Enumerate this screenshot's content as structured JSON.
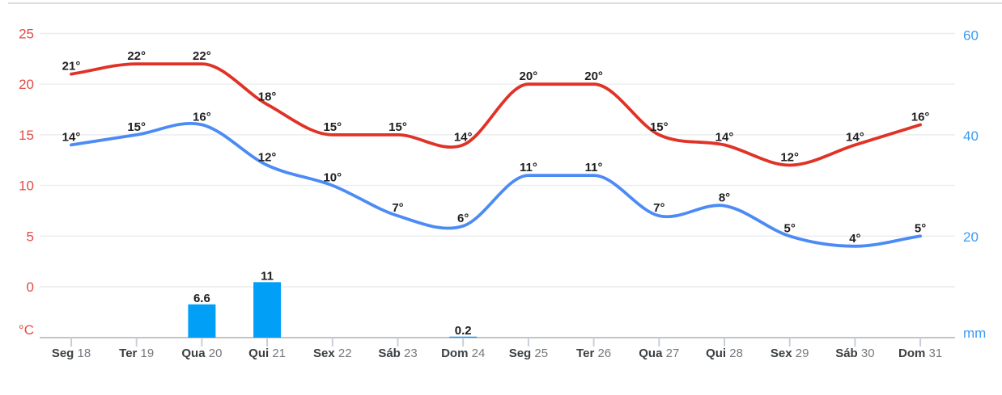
{
  "chart_data": {
    "type": "line+bar",
    "title": "",
    "categories": [
      {
        "day": "Seg",
        "date": "18"
      },
      {
        "day": "Ter",
        "date": "19"
      },
      {
        "day": "Qua",
        "date": "20"
      },
      {
        "day": "Qui",
        "date": "21"
      },
      {
        "day": "Sex",
        "date": "22"
      },
      {
        "day": "Sáb",
        "date": "23"
      },
      {
        "day": "Dom",
        "date": "24"
      },
      {
        "day": "Seg",
        "date": "25"
      },
      {
        "day": "Ter",
        "date": "26"
      },
      {
        "day": "Qua",
        "date": "27"
      },
      {
        "day": "Qui",
        "date": "28"
      },
      {
        "day": "Sex",
        "date": "29"
      },
      {
        "day": "Sáb",
        "date": "30"
      },
      {
        "day": "Dom",
        "date": "31"
      }
    ],
    "series": [
      {
        "name": "max-temperature",
        "type": "line",
        "color": "#e03226",
        "values": [
          21,
          22,
          22,
          18,
          15,
          15,
          14,
          20,
          20,
          15,
          14,
          12,
          14,
          16
        ],
        "labels": [
          "21°",
          "22°",
          "22°",
          "18°",
          "15°",
          "15°",
          "14°",
          "20°",
          "20°",
          "15°",
          "14°",
          "12°",
          "14°",
          "16°"
        ]
      },
      {
        "name": "min-temperature",
        "type": "line",
        "color": "#4c8bf5",
        "values": [
          14,
          15,
          16,
          12,
          10,
          7,
          6,
          11,
          11,
          7,
          8,
          5,
          4,
          5
        ],
        "labels": [
          "14°",
          "15°",
          "16°",
          "12°",
          "10°",
          "7°",
          "6°",
          "11°",
          "11°",
          "7°",
          "8°",
          "5°",
          "4°",
          "5°"
        ]
      },
      {
        "name": "precipitation",
        "type": "bar",
        "color": "#029ff7",
        "values": [
          null,
          null,
          6.6,
          11,
          null,
          null,
          0.2,
          null,
          null,
          null,
          null,
          null,
          null,
          null
        ],
        "labels": [
          null,
          null,
          "6.6",
          "11",
          null,
          null,
          "0.2",
          null,
          null,
          null,
          null,
          null,
          null,
          null
        ]
      }
    ],
    "left_axis": {
      "title": "°C",
      "color": "#e24b47",
      "ticks": [
        25,
        20,
        15,
        10,
        5,
        0
      ]
    },
    "right_axis": {
      "title": "mm",
      "color": "#3d9bf3",
      "ticks": [
        60,
        40,
        20
      ]
    },
    "grid": true,
    "legend": "none"
  },
  "styles": {
    "grid_color": "#ececec",
    "axis_line_color": "#c4c4c4",
    "category_tick_color": "#c9cfda",
    "top_border_color": "#d2d2d2",
    "day_color": "#3c4043",
    "date_color": "#75797e",
    "point_label_color": "#1f1f1f"
  }
}
